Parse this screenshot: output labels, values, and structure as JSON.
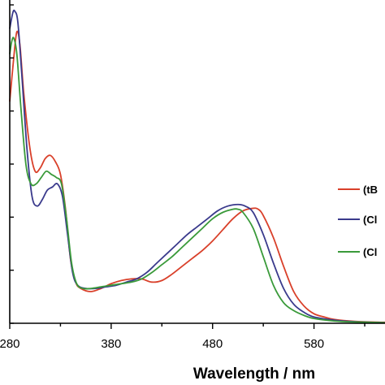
{
  "chart_data": {
    "type": "line",
    "title": "",
    "xlabel": "Wavelength  / nm",
    "ylabel": "",
    "xlim": [
      280,
      650
    ],
    "ylim": [
      0,
      1.0
    ],
    "x_ticks": [
      280,
      380,
      480,
      580
    ],
    "x_tick_labels": [
      "280",
      "380",
      "480",
      "580"
    ],
    "y_tick_count": 6,
    "grid": false,
    "legend": {
      "placement": "right"
    },
    "series": [
      {
        "name": "(tB",
        "color": "#d9402a",
        "points": [
          [
            280,
            0.7
          ],
          [
            284,
            0.84
          ],
          [
            287,
            0.92
          ],
          [
            290,
            0.88
          ],
          [
            294,
            0.72
          ],
          [
            300,
            0.55
          ],
          [
            305,
            0.48
          ],
          [
            310,
            0.49
          ],
          [
            315,
            0.52
          ],
          [
            320,
            0.53
          ],
          [
            325,
            0.51
          ],
          [
            330,
            0.47
          ],
          [
            335,
            0.36
          ],
          [
            340,
            0.2
          ],
          [
            345,
            0.13
          ],
          [
            350,
            0.11
          ],
          [
            360,
            0.1
          ],
          [
            370,
            0.11
          ],
          [
            380,
            0.125
          ],
          [
            390,
            0.135
          ],
          [
            400,
            0.14
          ],
          [
            410,
            0.14
          ],
          [
            420,
            0.13
          ],
          [
            430,
            0.135
          ],
          [
            440,
            0.155
          ],
          [
            450,
            0.18
          ],
          [
            460,
            0.205
          ],
          [
            470,
            0.23
          ],
          [
            480,
            0.26
          ],
          [
            490,
            0.295
          ],
          [
            500,
            0.33
          ],
          [
            510,
            0.355
          ],
          [
            520,
            0.363
          ],
          [
            525,
            0.36
          ],
          [
            530,
            0.34
          ],
          [
            540,
            0.27
          ],
          [
            550,
            0.18
          ],
          [
            560,
            0.1
          ],
          [
            570,
            0.055
          ],
          [
            580,
            0.03
          ],
          [
            590,
            0.02
          ],
          [
            600,
            0.012
          ],
          [
            620,
            0.006
          ],
          [
            650,
            0.003
          ]
        ]
      },
      {
        "name": "(Cl",
        "color": "#3a3a8c",
        "points": [
          [
            280,
            0.93
          ],
          [
            283,
            0.98
          ],
          [
            285,
            0.985
          ],
          [
            288,
            0.95
          ],
          [
            292,
            0.78
          ],
          [
            297,
            0.55
          ],
          [
            302,
            0.4
          ],
          [
            307,
            0.37
          ],
          [
            312,
            0.39
          ],
          [
            317,
            0.42
          ],
          [
            322,
            0.43
          ],
          [
            327,
            0.44
          ],
          [
            332,
            0.4
          ],
          [
            337,
            0.28
          ],
          [
            342,
            0.16
          ],
          [
            347,
            0.12
          ],
          [
            355,
            0.11
          ],
          [
            365,
            0.11
          ],
          [
            375,
            0.115
          ],
          [
            385,
            0.12
          ],
          [
            395,
            0.13
          ],
          [
            405,
            0.14
          ],
          [
            415,
            0.16
          ],
          [
            425,
            0.19
          ],
          [
            435,
            0.22
          ],
          [
            445,
            0.25
          ],
          [
            455,
            0.28
          ],
          [
            465,
            0.305
          ],
          [
            475,
            0.33
          ],
          [
            485,
            0.355
          ],
          [
            495,
            0.37
          ],
          [
            505,
            0.375
          ],
          [
            512,
            0.37
          ],
          [
            520,
            0.35
          ],
          [
            530,
            0.28
          ],
          [
            540,
            0.19
          ],
          [
            550,
            0.11
          ],
          [
            560,
            0.06
          ],
          [
            570,
            0.035
          ],
          [
            580,
            0.02
          ],
          [
            600,
            0.01
          ],
          [
            620,
            0.005
          ],
          [
            650,
            0.002
          ]
        ]
      },
      {
        "name": "(Cl",
        "color": "#3a9a3a",
        "points": [
          [
            280,
            0.85
          ],
          [
            282,
            0.89
          ],
          [
            284,
            0.9
          ],
          [
            287,
            0.85
          ],
          [
            291,
            0.68
          ],
          [
            296,
            0.5
          ],
          [
            301,
            0.44
          ],
          [
            306,
            0.44
          ],
          [
            311,
            0.46
          ],
          [
            316,
            0.48
          ],
          [
            321,
            0.47
          ],
          [
            326,
            0.46
          ],
          [
            331,
            0.44
          ],
          [
            336,
            0.33
          ],
          [
            341,
            0.19
          ],
          [
            346,
            0.125
          ],
          [
            352,
            0.11
          ],
          [
            360,
            0.11
          ],
          [
            370,
            0.115
          ],
          [
            380,
            0.12
          ],
          [
            390,
            0.125
          ],
          [
            400,
            0.13
          ],
          [
            410,
            0.14
          ],
          [
            420,
            0.16
          ],
          [
            430,
            0.185
          ],
          [
            440,
            0.21
          ],
          [
            450,
            0.24
          ],
          [
            460,
            0.27
          ],
          [
            470,
            0.3
          ],
          [
            480,
            0.33
          ],
          [
            490,
            0.35
          ],
          [
            500,
            0.36
          ],
          [
            505,
            0.36
          ],
          [
            510,
            0.35
          ],
          [
            520,
            0.3
          ],
          [
            530,
            0.21
          ],
          [
            540,
            0.12
          ],
          [
            550,
            0.065
          ],
          [
            560,
            0.04
          ],
          [
            570,
            0.025
          ],
          [
            580,
            0.015
          ],
          [
            600,
            0.007
          ],
          [
            620,
            0.004
          ],
          [
            650,
            0.002
          ]
        ]
      }
    ]
  }
}
